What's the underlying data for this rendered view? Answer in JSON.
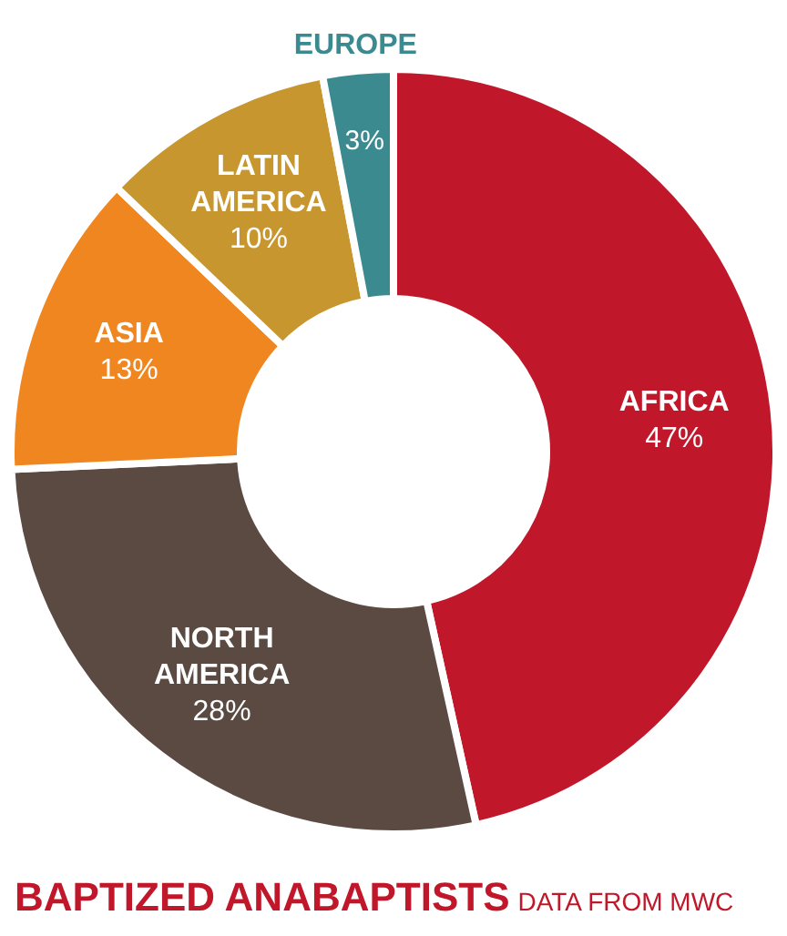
{
  "chart_data": {
    "type": "donut",
    "title": "BAPTIZED ANABAPTISTS",
    "subtitle": "DATA FROM MWC",
    "categories": [
      "AFRICA",
      "NORTH AMERICA",
      "ASIA",
      "LATIN AMERICA",
      "EUROPE"
    ],
    "values": [
      47,
      28,
      13,
      10,
      3
    ],
    "value_labels": [
      "47%",
      "28%",
      "13%",
      "10%",
      "3%"
    ],
    "colors": [
      "#c0182a",
      "#5a4a42",
      "#f0861f",
      "#c8962e",
      "#3a8a8f"
    ],
    "legend": false
  }
}
